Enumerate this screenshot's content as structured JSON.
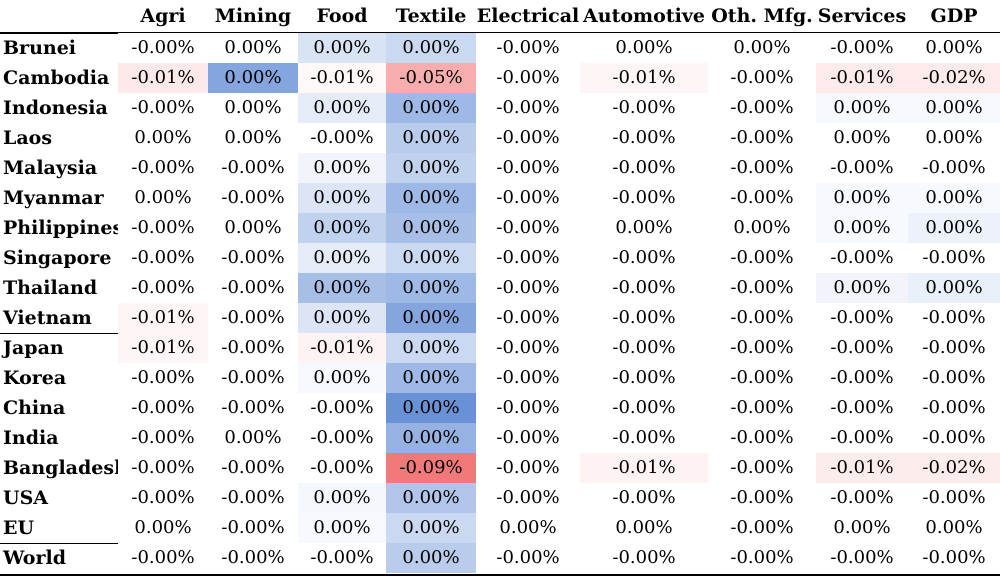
{
  "chart_data": {
    "type": "heatmap",
    "columns": [
      "Agri",
      "Mining",
      "Food",
      "Textile",
      "Electrical",
      "Automotive",
      "Oth. Mfg.",
      "Services",
      "GDP"
    ],
    "rows": [
      {
        "label": "Brunei",
        "values": [
          "-0.00%",
          "0.00%",
          "0.00%",
          "0.00%",
          "-0.00%",
          "0.00%",
          "0.00%",
          "-0.00%",
          "0.00%"
        ],
        "heat": [
          0,
          0,
          0.22,
          0.3,
          0,
          0,
          0,
          0,
          0
        ],
        "group": 1
      },
      {
        "label": "Cambodia",
        "values": [
          "-0.01%",
          "0.00%",
          "-0.01%",
          "-0.05%",
          "-0.00%",
          "-0.01%",
          "-0.00%",
          "-0.01%",
          "-0.02%"
        ],
        "heat": [
          -0.15,
          0.7,
          -0.05,
          -0.55,
          0,
          -0.06,
          0,
          -0.14,
          -0.14
        ],
        "group": 1
      },
      {
        "label": "Indonesia",
        "values": [
          "-0.00%",
          "0.00%",
          "0.00%",
          "0.00%",
          "-0.00%",
          "-0.00%",
          "-0.00%",
          "0.00%",
          "0.00%"
        ],
        "heat": [
          0,
          0,
          0.15,
          0.55,
          0,
          0,
          0,
          0.05,
          0.05
        ],
        "group": 1
      },
      {
        "label": "Laos",
        "values": [
          "0.00%",
          "0.00%",
          "-0.00%",
          "0.00%",
          "-0.00%",
          "-0.00%",
          "-0.00%",
          "0.00%",
          "0.00%"
        ],
        "heat": [
          0,
          0,
          0,
          0.4,
          0,
          0,
          0,
          0,
          0
        ],
        "group": 1
      },
      {
        "label": "Malaysia",
        "values": [
          "-0.00%",
          "-0.00%",
          "0.00%",
          "0.00%",
          "-0.00%",
          "-0.00%",
          "-0.00%",
          "-0.00%",
          "-0.00%"
        ],
        "heat": [
          0,
          0,
          0.08,
          0.35,
          0,
          0,
          0,
          0,
          0
        ],
        "group": 1
      },
      {
        "label": "Myanmar",
        "values": [
          "0.00%",
          "-0.00%",
          "0.00%",
          "0.00%",
          "-0.00%",
          "-0.00%",
          "-0.00%",
          "0.00%",
          "0.00%"
        ],
        "heat": [
          0,
          0,
          0.2,
          0.55,
          0,
          0,
          0,
          0.05,
          0.05
        ],
        "group": 1
      },
      {
        "label": "Philippines",
        "values": [
          "-0.00%",
          "0.00%",
          "0.00%",
          "0.00%",
          "-0.00%",
          "0.00%",
          "0.00%",
          "0.00%",
          "0.00%"
        ],
        "heat": [
          0,
          0,
          0.35,
          0.5,
          0,
          0,
          0,
          0.05,
          0.1
        ],
        "group": 1
      },
      {
        "label": "Singapore",
        "values": [
          "-0.00%",
          "-0.00%",
          "0.00%",
          "0.00%",
          "-0.00%",
          "-0.00%",
          "-0.00%",
          "-0.00%",
          "-0.00%"
        ],
        "heat": [
          0,
          0,
          0.15,
          0.3,
          0,
          0,
          0,
          0,
          0
        ],
        "group": 1
      },
      {
        "label": "Thailand",
        "values": [
          "-0.00%",
          "-0.00%",
          "0.00%",
          "0.00%",
          "-0.00%",
          "-0.00%",
          "-0.00%",
          "0.00%",
          "0.00%"
        ],
        "heat": [
          0,
          0,
          0.5,
          0.55,
          0,
          0,
          0,
          0.08,
          0.12
        ],
        "group": 1
      },
      {
        "label": "Vietnam",
        "values": [
          "-0.01%",
          "-0.00%",
          "0.00%",
          "0.00%",
          "-0.00%",
          "-0.00%",
          "-0.00%",
          "-0.00%",
          "-0.00%"
        ],
        "heat": [
          -0.06,
          0,
          0.2,
          0.7,
          0,
          0,
          0,
          0,
          0
        ],
        "group": 1
      },
      {
        "label": "Japan",
        "values": [
          "-0.01%",
          "-0.00%",
          "-0.01%",
          "0.00%",
          "-0.00%",
          "-0.00%",
          "-0.00%",
          "-0.00%",
          "-0.00%"
        ],
        "heat": [
          -0.06,
          0,
          -0.08,
          0.3,
          0,
          0,
          0,
          0,
          0
        ],
        "group": 2
      },
      {
        "label": "Korea",
        "values": [
          "-0.00%",
          "-0.00%",
          "0.00%",
          "0.00%",
          "-0.00%",
          "-0.00%",
          "-0.00%",
          "-0.00%",
          "-0.00%"
        ],
        "heat": [
          0,
          0,
          0.05,
          0.55,
          0,
          0,
          0,
          0,
          0
        ],
        "group": 2
      },
      {
        "label": "China",
        "values": [
          "-0.00%",
          "-0.00%",
          "-0.00%",
          "0.00%",
          "-0.00%",
          "-0.00%",
          "-0.00%",
          "-0.00%",
          "-0.00%"
        ],
        "heat": [
          0,
          0,
          0,
          0.85,
          0,
          0,
          0,
          0,
          0
        ],
        "group": 2
      },
      {
        "label": "India",
        "values": [
          "-0.00%",
          "0.00%",
          "-0.00%",
          "0.00%",
          "-0.00%",
          "-0.00%",
          "-0.00%",
          "-0.00%",
          "-0.00%"
        ],
        "heat": [
          0,
          0,
          0,
          0.6,
          0,
          0,
          0,
          0,
          0
        ],
        "group": 2
      },
      {
        "label": "Bangladesh",
        "values": [
          "-0.00%",
          "-0.00%",
          "-0.00%",
          "-0.09%",
          "-0.00%",
          "-0.01%",
          "-0.00%",
          "-0.01%",
          "-0.02%"
        ],
        "heat": [
          0,
          0,
          0,
          -0.9,
          0,
          -0.08,
          0,
          -0.13,
          -0.13
        ],
        "group": 2
      },
      {
        "label": "USA",
        "values": [
          "-0.00%",
          "-0.00%",
          "0.00%",
          "0.00%",
          "-0.00%",
          "-0.00%",
          "-0.00%",
          "-0.00%",
          "-0.00%"
        ],
        "heat": [
          0,
          0,
          0.06,
          0.45,
          0,
          0,
          0,
          0,
          0
        ],
        "group": 2
      },
      {
        "label": "EU",
        "values": [
          "0.00%",
          "-0.00%",
          "0.00%",
          "0.00%",
          "0.00%",
          "0.00%",
          "-0.00%",
          "0.00%",
          "0.00%"
        ],
        "heat": [
          0,
          0,
          0.05,
          0.3,
          0,
          0,
          0,
          0,
          0
        ],
        "group": 2
      },
      {
        "label": "World",
        "values": [
          "-0.00%",
          "-0.00%",
          "-0.00%",
          "0.00%",
          "-0.00%",
          "-0.00%",
          "-0.00%",
          "-0.00%",
          "-0.00%"
        ],
        "heat": [
          0,
          0,
          0,
          0.4,
          0,
          0,
          0,
          0,
          0
        ],
        "group": 3
      }
    ],
    "colors": {
      "positive": "#4f7fcf",
      "negative": "#f06a6a",
      "neutral": "#ffffff"
    }
  }
}
